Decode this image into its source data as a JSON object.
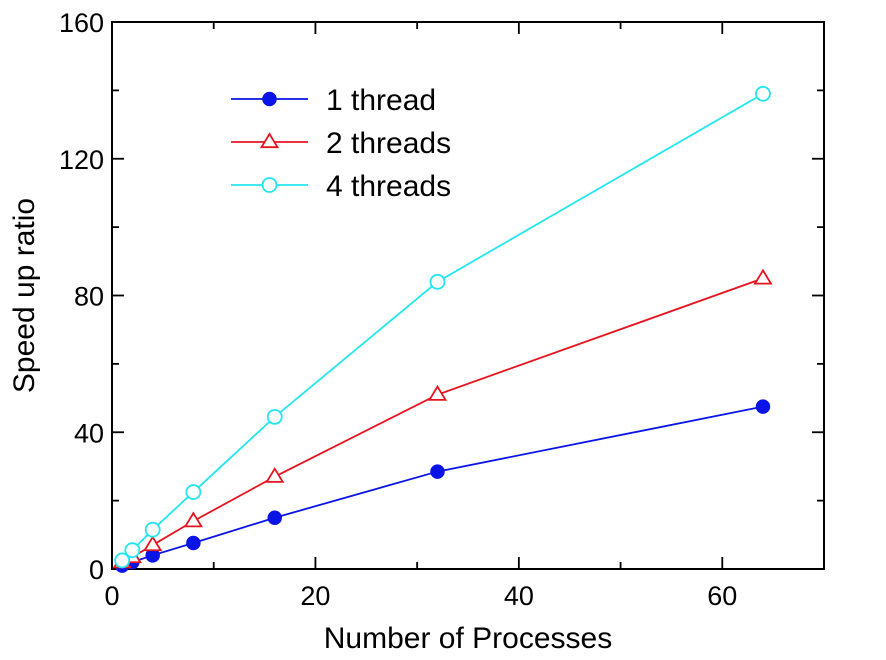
{
  "chart_data": {
    "type": "line",
    "title": "",
    "xlabel": "Number of Processes",
    "ylabel": "Speed up ratio",
    "xlim": [
      0,
      70
    ],
    "ylim": [
      0,
      160
    ],
    "xticks": [
      0,
      20,
      40,
      60
    ],
    "yticks": [
      0,
      40,
      80,
      120,
      160
    ],
    "grid": false,
    "legend_position": "top-left",
    "series": [
      {
        "name": "1 thread",
        "color": "#0a14e6",
        "marker": "filled-circle",
        "x": [
          1,
          2,
          4,
          8,
          16,
          32,
          64
        ],
        "y": [
          1,
          2,
          4,
          7.6,
          15,
          28.5,
          47.5
        ]
      },
      {
        "name": "2 threads",
        "color": "#e6141e",
        "marker": "open-triangle",
        "x": [
          1,
          2,
          4,
          8,
          16,
          32,
          64
        ],
        "y": [
          2,
          3.5,
          7,
          14,
          27,
          51,
          85
        ]
      },
      {
        "name": "4 threads",
        "color": "#22e6f0",
        "marker": "open-circle",
        "x": [
          1,
          2,
          4,
          8,
          16,
          32,
          64
        ],
        "y": [
          2.5,
          5.5,
          11.5,
          22.5,
          44.5,
          84,
          139
        ]
      }
    ]
  }
}
